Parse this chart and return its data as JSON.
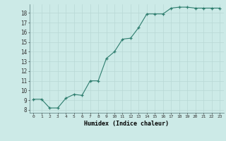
{
  "x": [
    0,
    1,
    2,
    3,
    4,
    5,
    6,
    7,
    8,
    9,
    10,
    11,
    12,
    13,
    14,
    15,
    16,
    17,
    18,
    19,
    20,
    21,
    22,
    23
  ],
  "y": [
    9.1,
    9.1,
    8.2,
    8.2,
    9.2,
    9.6,
    9.5,
    11.0,
    11.0,
    13.3,
    14.0,
    15.3,
    15.4,
    16.5,
    17.9,
    17.9,
    17.9,
    18.5,
    18.6,
    18.6,
    18.5,
    18.5,
    18.5,
    18.5
  ],
  "line_color": "#2e7d6e",
  "marker": "+",
  "marker_color": "#2e7d6e",
  "bg_color": "#cceae7",
  "grid_color_major": "#b8d8d5",
  "grid_color_minor": "#b8d8d5",
  "xlabel": "Humidex (Indice chaleur)",
  "yticks": [
    8,
    9,
    10,
    11,
    12,
    13,
    14,
    15,
    16,
    17,
    18
  ],
  "xlim": [
    -0.5,
    23.5
  ],
  "ylim": [
    7.7,
    18.9
  ]
}
